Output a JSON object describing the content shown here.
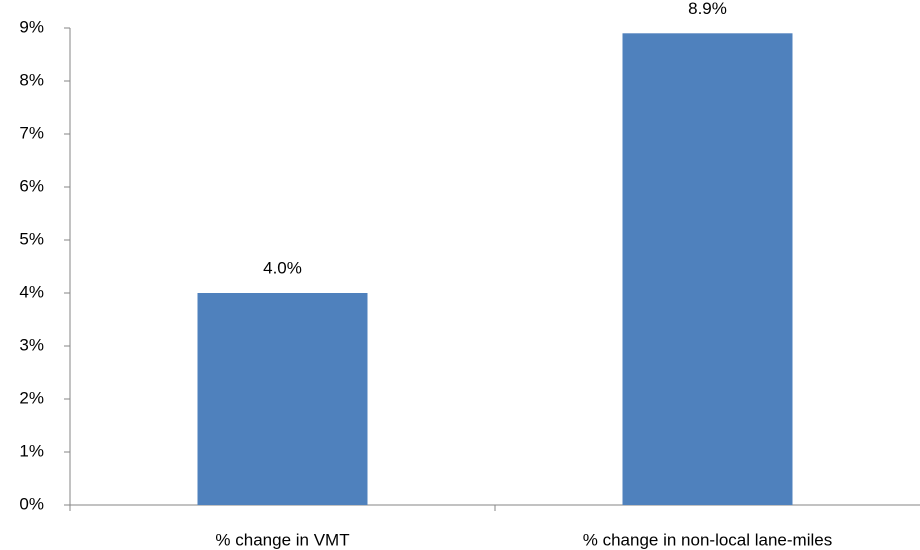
{
  "chart_data": {
    "type": "bar",
    "categories": [
      "% change in VMT",
      "% change in non-local lane-miles"
    ],
    "values": [
      4.0,
      8.9
    ],
    "value_labels": [
      "4.0%",
      "8.9%"
    ],
    "color": "#4f81bd",
    "ylim": [
      0,
      9
    ],
    "yticks": [
      {
        "value": 0,
        "label": "0%"
      },
      {
        "value": 1,
        "label": "1%"
      },
      {
        "value": 2,
        "label": "2%"
      },
      {
        "value": 3,
        "label": "3%"
      },
      {
        "value": 4,
        "label": "4%"
      },
      {
        "value": 5,
        "label": "5%"
      },
      {
        "value": 6,
        "label": "6%"
      },
      {
        "value": 7,
        "label": "7%"
      },
      {
        "value": 8,
        "label": "8%"
      },
      {
        "value": 9,
        "label": "9%"
      }
    ],
    "grid": false
  }
}
